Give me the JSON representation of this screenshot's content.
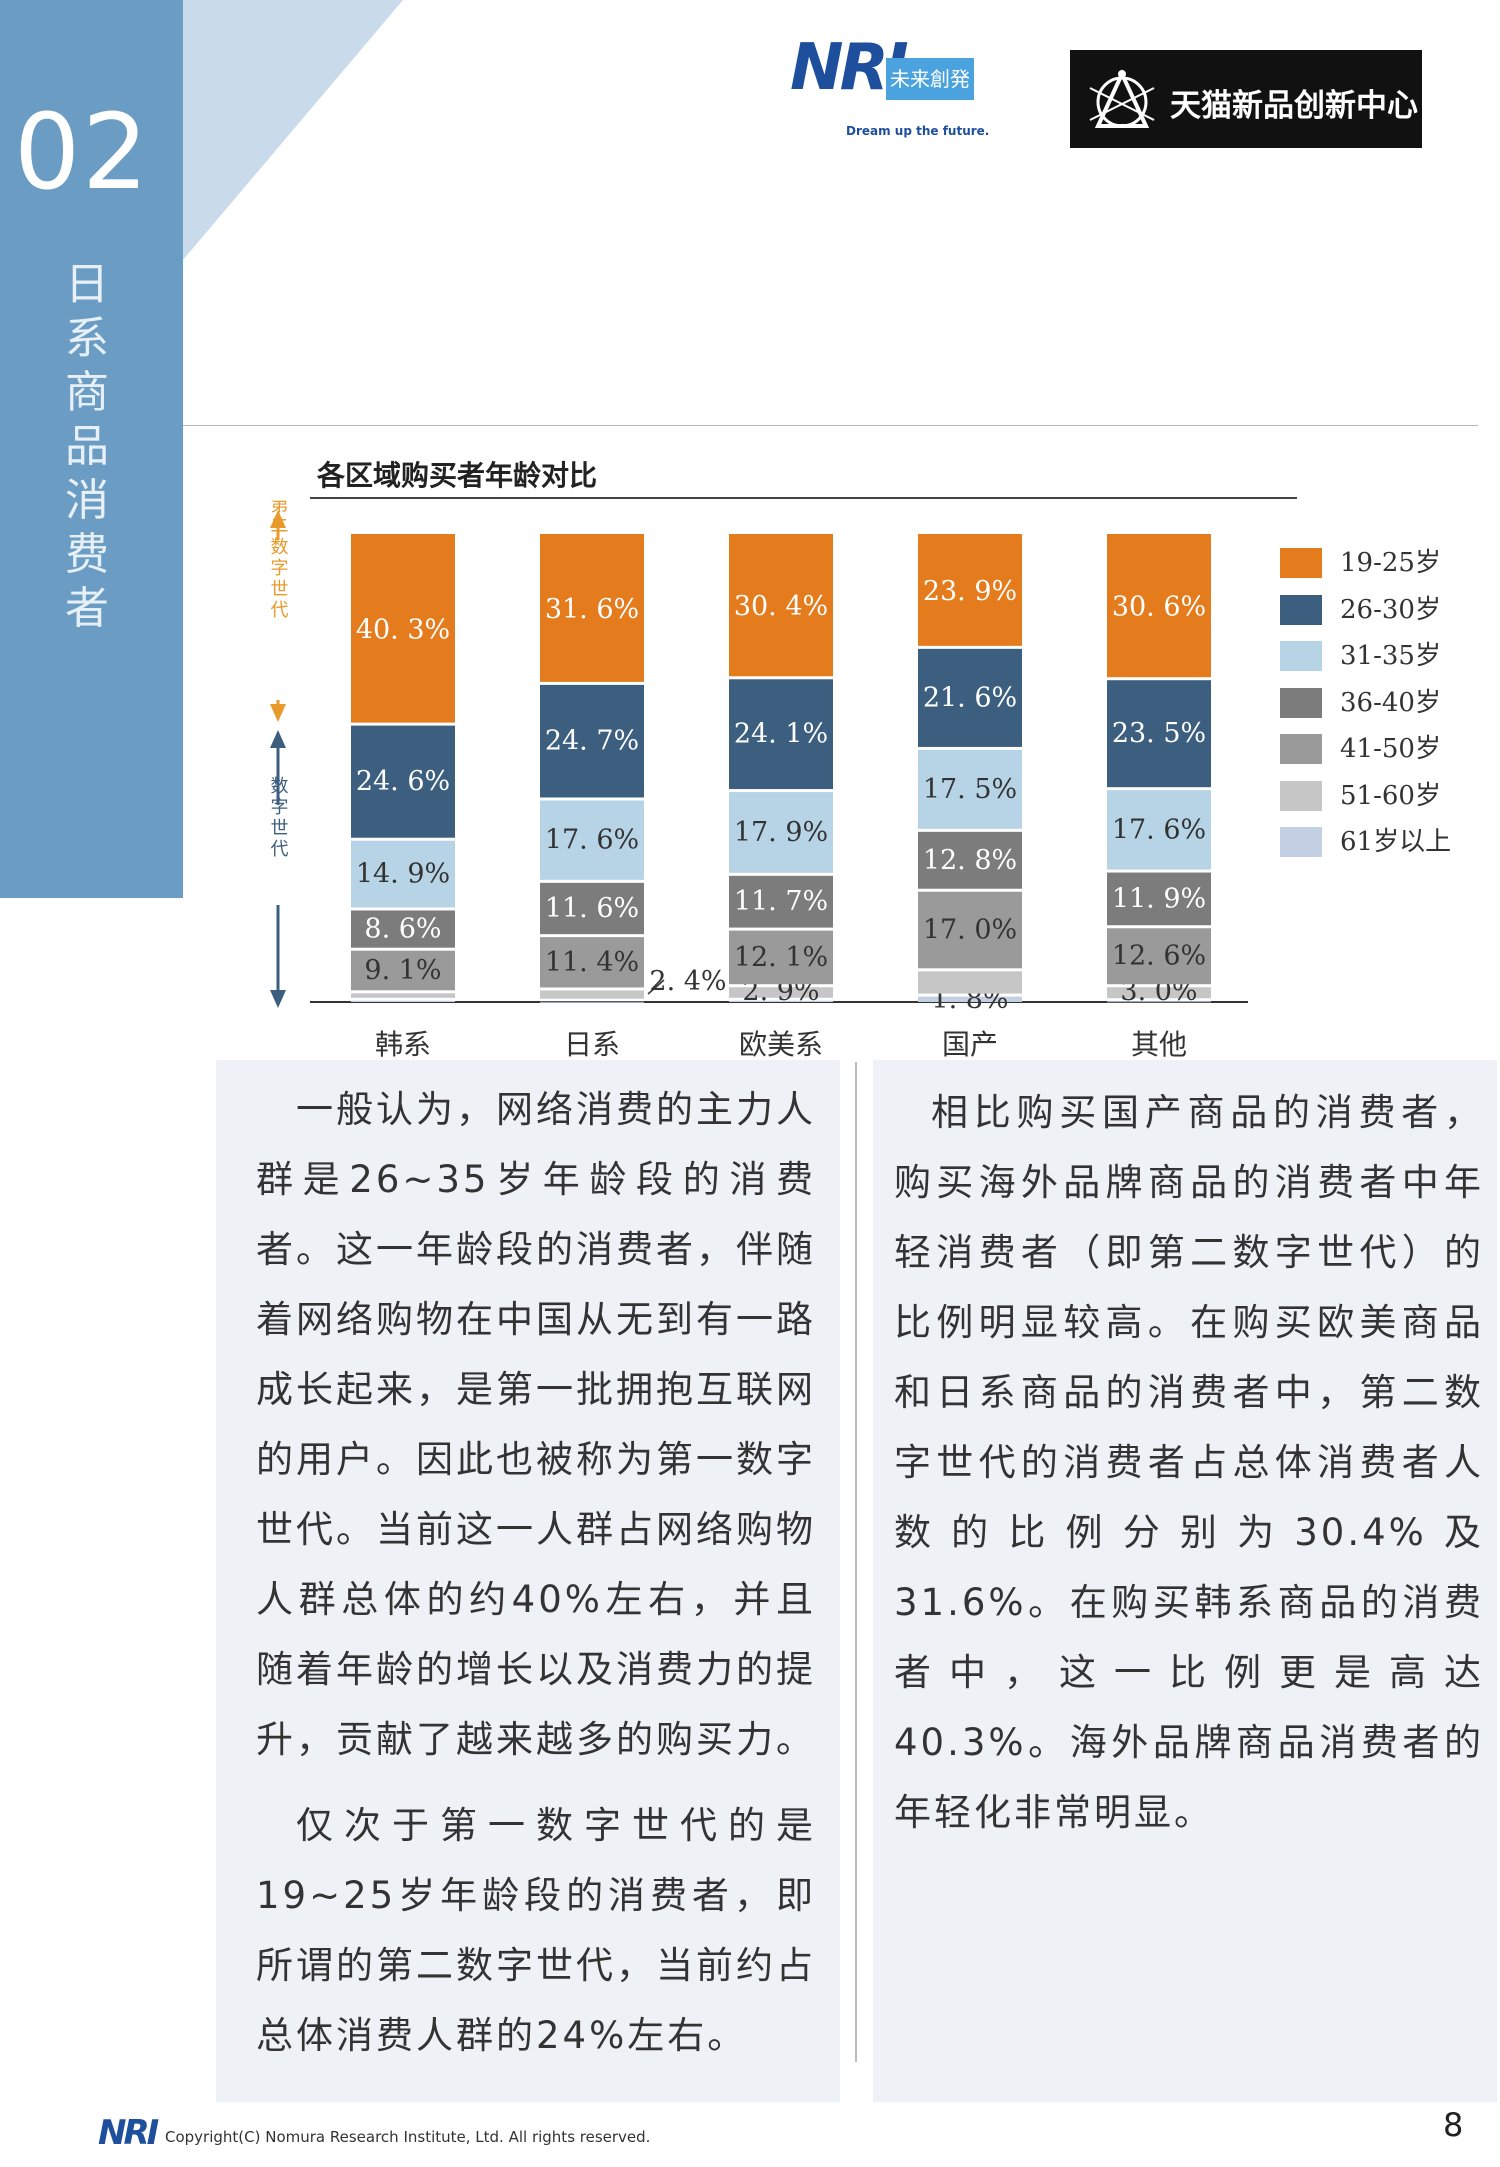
{
  "section": {
    "number": "02",
    "title": "日系商品消费者"
  },
  "logos": {
    "nri": {
      "letters": "NRI",
      "box_text": "未来創発",
      "tagline": "Dream up the future."
    },
    "tmall": {
      "text": "天猫新品创新中心"
    }
  },
  "colors": {
    "band": "#6b9dc4",
    "age_19_25": "#e47c1e",
    "age_26_30": "#3d5f7f",
    "age_31_35": "#b7d3e6",
    "age_36_40": "#7c7c7c",
    "age_41_50": "#9a9a9a",
    "age_51_60": "#c6c6c6",
    "age_61_plus": "#c3cfe3",
    "axis_orange": "#e89a2a",
    "axis_blue": "#3d5f7f"
  },
  "chart_data": {
    "type": "bar",
    "stacked": true,
    "title": "各区域购买者年龄对比",
    "categories": [
      "韩系",
      "日系",
      "欧美系",
      "国产",
      "其他"
    ],
    "series": [
      {
        "name": "19-25岁",
        "values": [
          40.3,
          31.6,
          30.4,
          23.9,
          30.6
        ],
        "labels": [
          "40. 3%",
          "31. 6%",
          "30. 4%",
          "23. 9%",
          "30. 6%"
        ]
      },
      {
        "name": "26-30岁",
        "values": [
          24.6,
          24.7,
          24.1,
          21.6,
          23.5
        ],
        "labels": [
          "24. 6%",
          "24. 7%",
          "24. 1%",
          "21. 6%",
          "23. 5%"
        ]
      },
      {
        "name": "31-35岁",
        "values": [
          14.9,
          17.6,
          17.9,
          17.5,
          17.6
        ],
        "labels": [
          "14. 9%",
          "17. 6%",
          "17. 9%",
          "17. 5%",
          "17. 6%"
        ]
      },
      {
        "name": "36-40岁",
        "values": [
          8.6,
          11.6,
          11.7,
          12.8,
          11.9
        ],
        "labels": [
          "8. 6%",
          "11. 6%",
          "11. 7%",
          "12. 8%",
          "11. 9%"
        ]
      },
      {
        "name": "41-50岁",
        "values": [
          9.1,
          11.4,
          12.1,
          17.0,
          12.6
        ],
        "labels": [
          "9. 1%",
          "11. 4%",
          "12. 1%",
          "17. 0%",
          "12. 6%"
        ]
      },
      {
        "name": "51-60岁",
        "values": [
          1.6,
          2.4,
          2.9,
          5.4,
          3.0
        ],
        "labels": [
          "",
          "2. 4%",
          "2. 9%",
          "",
          "3. 0%"
        ]
      },
      {
        "name": "61岁以上",
        "values": [
          0.9,
          0.7,
          0.9,
          1.8,
          0.8
        ],
        "labels": [
          "",
          "",
          "",
          "1. 8%",
          ""
        ]
      }
    ],
    "ylim": [
      0,
      100
    ],
    "legend_position": "right",
    "axis_annotations": {
      "upper": "第二数字世代",
      "lower": "数字世代"
    }
  },
  "text": {
    "left_paragraphs": [
      "一般认为，网络消费的主力人群是26~35岁年龄段的消费者。这一年龄段的消费者，伴随着网络购物在中国从无到有一路成长起来，是第一批拥抱互联网的用户。因此也被称为第一数字世代。当前这一人群占网络购物人群总体的约40%左右，并且随着年龄的增长以及消费力的提升，贡献了越来越多的购买力。",
      "仅次于第一数字世代的是19~25岁年龄段的消费者，即所谓的第二数字世代，当前约占总体消费人群的24%左右。"
    ],
    "right_paragraphs": [
      "相比购买国产商品的消费者，购买海外品牌商品的消费者中年轻消费者（即第二数字世代）的比例明显较高。在购买欧美商品和日系商品的消费者中，第二数字世代的消费者占总体消费者人数的比例分别为30.4%及31.6%。在购买韩系商品的消费者中，这一比例更是高达40.3%。海外品牌商品消费者的年轻化非常明显。"
    ]
  },
  "footer": {
    "logo": "NRI",
    "copyright": "Copyright(C) Nomura Research Institute, Ltd. All rights reserved.",
    "page_number": "8"
  }
}
